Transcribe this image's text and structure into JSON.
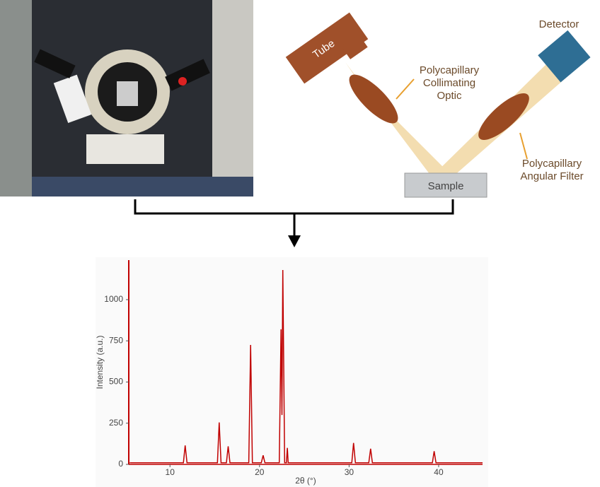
{
  "diagram": {
    "tube": "Tube",
    "detector": "Detector",
    "collimating_optic": [
      "Polycapillary",
      "Collimating",
      "Optic"
    ],
    "sample": "Sample",
    "angular_filter": [
      "Polycapillary",
      "Angular Filter"
    ]
  },
  "chart_data": {
    "type": "line",
    "x_label": "2θ (°)",
    "y_label": "Intensity (a.u.)",
    "color": "#c00000",
    "x": [
      5.5,
      11.5,
      11.7,
      11.9,
      15.3,
      15.5,
      15.7,
      16.3,
      16.5,
      16.7,
      18.8,
      19.0,
      19.2,
      20.2,
      20.4,
      20.6,
      22.2,
      22.4,
      22.5,
      22.6,
      22.8,
      23.0,
      23.1,
      23.2,
      30.3,
      30.5,
      30.7,
      32.2,
      32.4,
      32.6,
      39.3,
      39.5,
      39.7,
      44.9
    ],
    "values": [
      10,
      10,
      115,
      10,
      10,
      255,
      10,
      10,
      110,
      10,
      10,
      725,
      10,
      10,
      55,
      10,
      10,
      820,
      300,
      1180,
      10,
      10,
      100,
      10,
      10,
      130,
      10,
      10,
      95,
      10,
      10,
      80,
      10,
      10
    ],
    "xlim": [
      5.4,
      44.9
    ],
    "ylim": [
      0,
      1240
    ],
    "xticks": [
      10,
      20,
      30,
      40
    ],
    "yticks": [
      0,
      250,
      500,
      750,
      1000
    ]
  }
}
